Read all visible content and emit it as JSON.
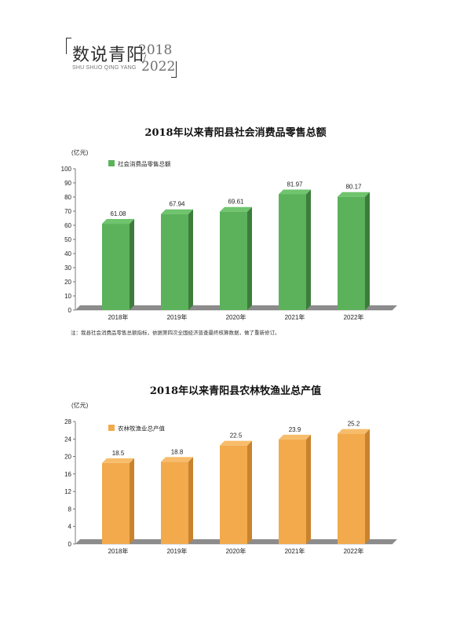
{
  "header": {
    "title": "数说青阳",
    "year_start": "2018",
    "year_end": "2022",
    "pinyin": "SHU SHUO QING YANG"
  },
  "chart_data": [
    {
      "type": "bar",
      "title": "2018年以来青阳县社会消费品零售总额",
      "ylabel": "(亿元)",
      "xlabel": "",
      "categories": [
        "2018年",
        "2019年",
        "2020年",
        "2021年",
        "2022年"
      ],
      "series": [
        {
          "name": "社会消费品零售总额",
          "values": [
            61.08,
            67.94,
            69.61,
            81.97,
            80.17
          ]
        }
      ],
      "data_labels": [
        "61.08",
        "67.94",
        "69.61",
        "81.97",
        "80.17"
      ],
      "ylim": [
        0,
        100
      ],
      "yticks": [
        0,
        10,
        20,
        30,
        40,
        50,
        60,
        70,
        80,
        90,
        100
      ],
      "grid": false,
      "legend": "top-left",
      "colors": {
        "front": "#5cb25b",
        "side": "#3d7d3c",
        "top": "#6fc46d"
      },
      "note": "注：我县社会消费品零售总额指标，依据第四次全国经济普查最终核算数据，做了重新修订。"
    },
    {
      "type": "bar",
      "title": "2018年以来青阳县农林牧渔业总产值",
      "ylabel": "(亿元)",
      "xlabel": "",
      "categories": [
        "2018年",
        "2019年",
        "2020年",
        "2021年",
        "2022年"
      ],
      "series": [
        {
          "name": "农林牧渔业总产值",
          "values": [
            18.5,
            18.8,
            22.5,
            23.9,
            25.2
          ]
        }
      ],
      "data_labels": [
        "18.5",
        "18.8",
        "22.5",
        "23.9",
        "25.2"
      ],
      "ylim": [
        0,
        28
      ],
      "yticks": [
        0,
        4,
        8,
        12,
        16,
        20,
        24,
        28
      ],
      "grid": false,
      "legend": "top-left",
      "colors": {
        "front": "#f2aa4c",
        "side": "#c9832e",
        "top": "#f7bd6b"
      }
    }
  ]
}
